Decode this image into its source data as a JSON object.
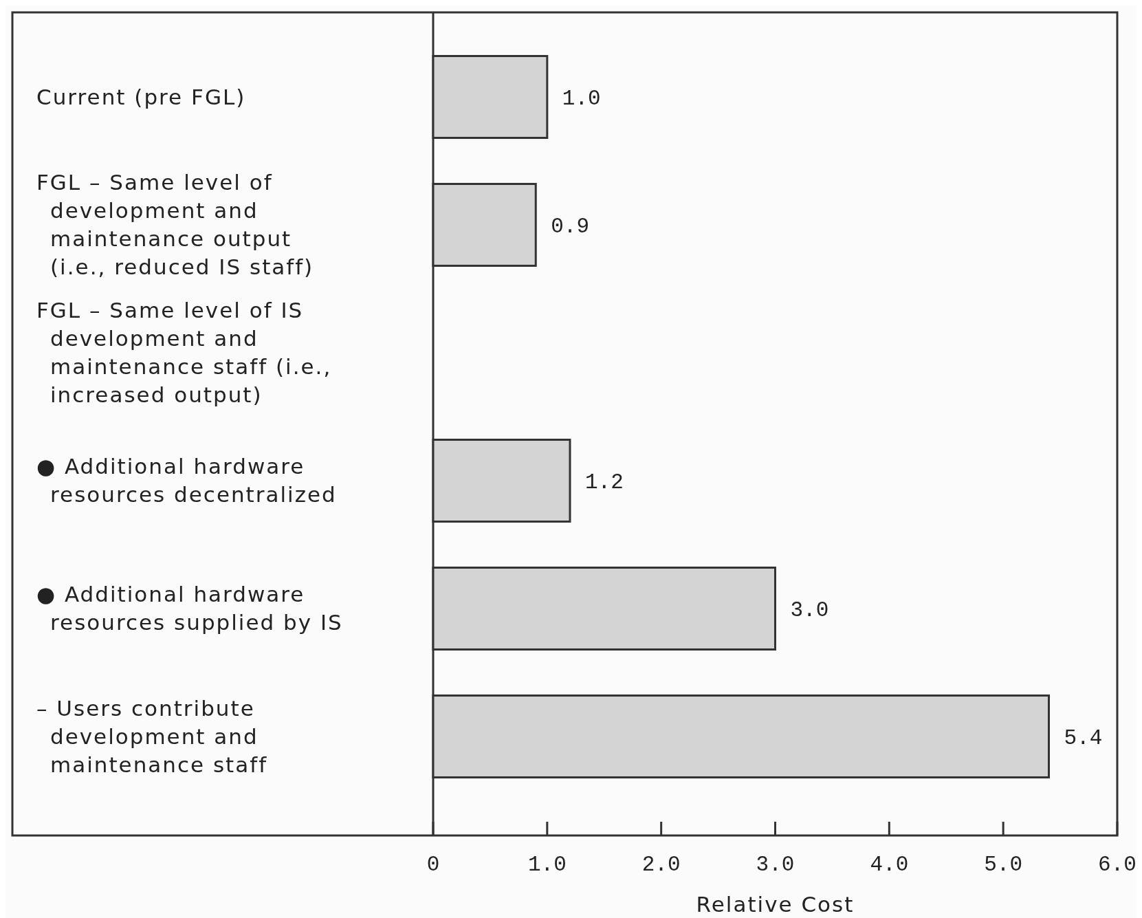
{
  "chart_data": {
    "type": "bar",
    "orientation": "horizontal",
    "xlabel": "Relative Cost",
    "categories": [
      "Current (pre FGL)",
      "FGL – Same level of\ndevelopment and\nmaintenance output\n(i.e., reduced IS staff)",
      "FGL – Same level of IS\ndevelopment and\nmaintenance staff (i.e.,\nincreased output)",
      "● Additional hardware\nresources decentralized",
      "● Additional hardware\nresources supplied by IS",
      "– Users contribute\ndevelopment and\nmaintenance staff"
    ],
    "values": [
      1.0,
      0.9,
      null,
      1.2,
      3.0,
      5.4
    ],
    "value_labels": [
      "1.0",
      "0.9",
      null,
      "1.2",
      "3.0",
      "5.4"
    ],
    "color": "#d4d4d4",
    "xlim": [
      0,
      6
    ],
    "xticks": [
      0,
      {
        "value": 1,
        "label": "1.0"
      },
      {
        "value": 2,
        "label": "2.0"
      },
      {
        "value": 3,
        "label": "3.0"
      },
      {
        "value": 4,
        "label": "4.0"
      },
      {
        "value": 5,
        "label": "5.0"
      },
      {
        "value": 6,
        "label": "6.0"
      }
    ],
    "grid": false
  }
}
